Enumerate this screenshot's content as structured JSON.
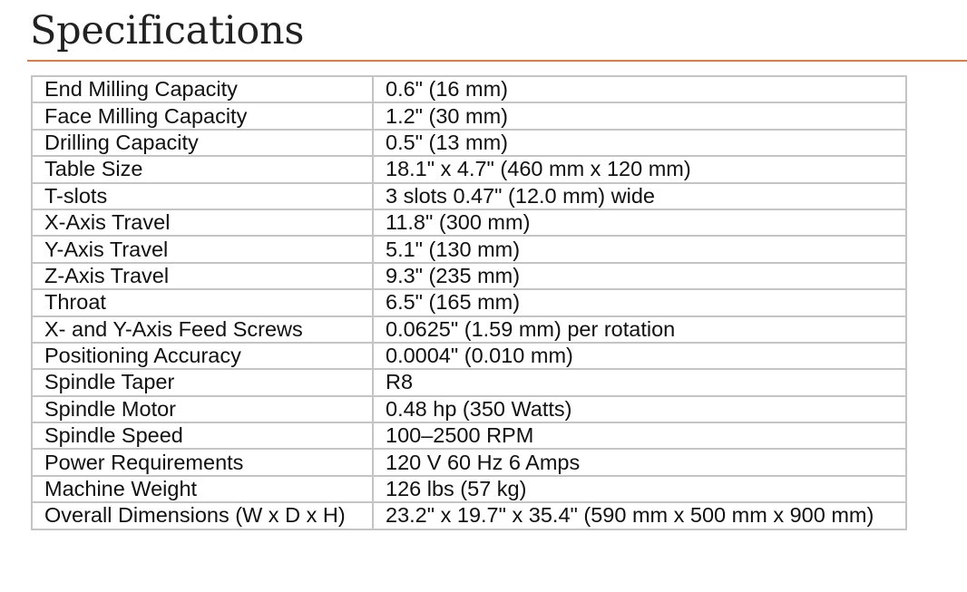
{
  "title": "Specifications",
  "colors": {
    "rule": "#e07a45",
    "border": "#c4c4c4",
    "text": "#111111"
  },
  "rows": [
    {
      "label": "End Milling Capacity",
      "value": "0.6\" (16 mm)"
    },
    {
      "label": "Face Milling Capacity",
      "value": "1.2\" (30 mm)"
    },
    {
      "label": "Drilling Capacity",
      "value": "0.5\" (13 mm)"
    },
    {
      "label": "Table Size",
      "value": "18.1\" x 4.7\" (460 mm x 120 mm)"
    },
    {
      "label": "T-slots",
      "value": "3 slots 0.47\" (12.0 mm) wide"
    },
    {
      "label": "X-Axis Travel",
      "value": "11.8\" (300 mm)"
    },
    {
      "label": "Y-Axis Travel",
      "value": "5.1\" (130 mm)"
    },
    {
      "label": "Z-Axis Travel",
      "value": "9.3\" (235 mm)"
    },
    {
      "label": "Throat",
      "value": "6.5\" (165 mm)"
    },
    {
      "label": "X- and Y-Axis Feed Screws",
      "value": "0.0625\" (1.59 mm) per rotation"
    },
    {
      "label": "Positioning Accuracy",
      "value": "0.0004\" (0.010 mm)"
    },
    {
      "label": "Spindle Taper",
      "value": "R8"
    },
    {
      "label": "Spindle Motor",
      "value": "0.48 hp (350 Watts)"
    },
    {
      "label": "Spindle Speed",
      "value": "100–2500 RPM"
    },
    {
      "label": "Power Requirements",
      "value": "120 V 60 Hz 6 Amps"
    },
    {
      "label": "Machine Weight",
      "value": "126 lbs (57 kg)"
    },
    {
      "label": "Overall Dimensions (W x D x H)",
      "value": "23.2\" x 19.7\" x 35.4\" (590 mm x 500 mm x 900 mm)"
    }
  ]
}
